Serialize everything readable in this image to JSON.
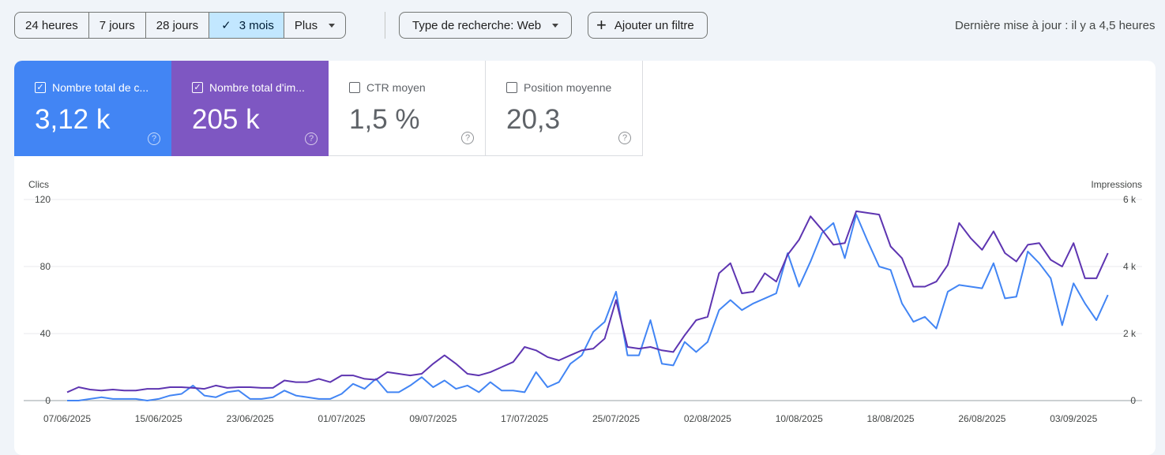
{
  "toolbar": {
    "ranges": [
      "24 heures",
      "7 jours",
      "28 jours",
      "3 mois"
    ],
    "selected_check": "✓",
    "more_label": "Plus",
    "search_type_label": "Type de recherche: Web",
    "add_filter_label": "Ajouter un filtre",
    "add_icon": "+",
    "last_updated": "Dernière mise à jour : il y a 4,5 heures"
  },
  "metrics": [
    {
      "label": "Nombre total de c...",
      "value": "3,12 k",
      "checked": true,
      "color": "#4285f4"
    },
    {
      "label": "Nombre total d'im...",
      "value": "205 k",
      "checked": true,
      "color": "#7e57c2"
    },
    {
      "label": "CTR moyen",
      "value": "1,5 %",
      "checked": false
    },
    {
      "label": "Position moyenne",
      "value": "20,3",
      "checked": false
    }
  ],
  "chart_data": {
    "type": "line",
    "left_axis_title": "Clics",
    "right_axis_title": "Impressions",
    "left_ticks": [
      "0",
      "40",
      "80",
      "120"
    ],
    "right_ticks": [
      "0",
      "2 k",
      "4 k",
      "6 k"
    ],
    "left_ylim": [
      0,
      120
    ],
    "right_ylim": [
      0,
      6000
    ],
    "x_start": "07/06/2025",
    "x_ticks": [
      "07/06/2025",
      "15/06/2025",
      "23/06/2025",
      "01/07/2025",
      "09/07/2025",
      "17/07/2025",
      "25/07/2025",
      "02/08/2025",
      "10/08/2025",
      "18/08/2025",
      "26/08/2025",
      "03/09/2025"
    ],
    "grid": true,
    "series": [
      {
        "name": "Clics",
        "axis": "left",
        "color": "#4285f4",
        "values": [
          0,
          0,
          1,
          2,
          1,
          1,
          1,
          0,
          1,
          3,
          4,
          9,
          3,
          2,
          5,
          6,
          1,
          1,
          2,
          6,
          3,
          2,
          1,
          1,
          4,
          10,
          7,
          13,
          5,
          5,
          9,
          14,
          8,
          12,
          7,
          9,
          5,
          11,
          6,
          6,
          5,
          17,
          8,
          11,
          22,
          27,
          41,
          47,
          65,
          27,
          27,
          48,
          22,
          21,
          35,
          29,
          35,
          54,
          60,
          54,
          58,
          61,
          64,
          88,
          68,
          83,
          100,
          106,
          85,
          111,
          95,
          80,
          78,
          58,
          47,
          50,
          43,
          65,
          69,
          68,
          67,
          82,
          61,
          62,
          89,
          82,
          73,
          45,
          70,
          58,
          48,
          63
        ]
      },
      {
        "name": "Impressions",
        "axis": "right",
        "color": "#5e35b1",
        "values": [
          250,
          400,
          330,
          300,
          330,
          300,
          300,
          350,
          350,
          400,
          400,
          380,
          350,
          450,
          380,
          400,
          400,
          380,
          380,
          600,
          550,
          550,
          650,
          550,
          750,
          750,
          650,
          620,
          850,
          800,
          750,
          800,
          1100,
          1350,
          1100,
          800,
          750,
          850,
          1000,
          1150,
          1600,
          1500,
          1300,
          1200,
          1350,
          1500,
          1550,
          1850,
          3000,
          1600,
          1550,
          1600,
          1500,
          1450,
          1950,
          2400,
          2500,
          3800,
          4100,
          3200,
          3250,
          3800,
          3550,
          4350,
          4800,
          5500,
          5100,
          4650,
          4700,
          5650,
          5600,
          5550,
          4600,
          4250,
          3400,
          3400,
          3550,
          4050,
          5300,
          4850,
          4500,
          5050,
          4400,
          4150,
          4650,
          4700,
          4200,
          4000,
          4700,
          3650,
          3650,
          4400
        ]
      }
    ]
  }
}
